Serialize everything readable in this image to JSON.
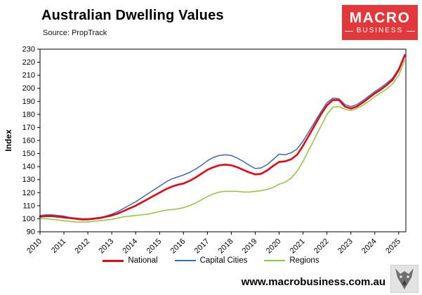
{
  "header": {
    "title": "Australian Dwelling Values",
    "source": "Source: PropTrack",
    "logo": {
      "line1": "MACRO",
      "line2": "BUSINESS",
      "bg_color": "#e2373b"
    }
  },
  "chart_data": {
    "type": "line",
    "title": "Australian Dwelling Values",
    "subtitle": "Source: PropTrack",
    "xlabel": "",
    "ylabel": "Index",
    "ylim": [
      90,
      230
    ],
    "ytick_step": 10,
    "xlim": [
      2010,
      2025.3
    ],
    "xticks": [
      2010,
      2011,
      2012,
      2013,
      2014,
      2015,
      2016,
      2017,
      2018,
      2019,
      2020,
      2021,
      2022,
      2023,
      2024,
      2025
    ],
    "grid": false,
    "legend_position": "bottom",
    "x": [
      2010.0,
      2010.25,
      2010.5,
      2010.75,
      2011.0,
      2011.25,
      2011.5,
      2011.75,
      2012.0,
      2012.25,
      2012.5,
      2012.75,
      2013.0,
      2013.25,
      2013.5,
      2013.75,
      2014.0,
      2014.25,
      2014.5,
      2014.75,
      2015.0,
      2015.25,
      2015.5,
      2015.75,
      2016.0,
      2016.25,
      2016.5,
      2016.75,
      2017.0,
      2017.25,
      2017.5,
      2017.75,
      2018.0,
      2018.25,
      2018.5,
      2018.75,
      2019.0,
      2019.25,
      2019.5,
      2019.75,
      2020.0,
      2020.25,
      2020.5,
      2020.75,
      2021.0,
      2021.25,
      2021.5,
      2021.75,
      2022.0,
      2022.25,
      2022.5,
      2022.75,
      2023.0,
      2023.25,
      2023.5,
      2023.75,
      2024.0,
      2024.25,
      2024.5,
      2024.75,
      2025.0,
      2025.25
    ],
    "series": [
      {
        "name": "National",
        "color": "#e30613",
        "width": 2.6,
        "values": [
          101.5,
          102,
          102,
          101.5,
          101,
          100.5,
          100,
          99.5,
          99.5,
          100,
          100.5,
          101.5,
          102.5,
          104,
          106,
          108,
          110,
          112.5,
          115,
          117.5,
          120,
          122.5,
          124.5,
          126,
          127,
          129,
          131.5,
          134.5,
          137.5,
          139.5,
          141,
          141.5,
          141,
          139.5,
          137.5,
          135.5,
          134,
          134.5,
          137,
          140.5,
          143.5,
          144,
          145.5,
          149,
          156,
          164,
          172,
          180,
          187,
          191,
          191,
          186,
          184.5,
          186,
          189,
          192.5,
          196,
          199,
          202.5,
          206.5,
          214,
          225
        ]
      },
      {
        "name": "Capital Cities",
        "color": "#3a6bb0",
        "width": 1.5,
        "values": [
          102.5,
          103,
          103,
          102.5,
          102,
          101,
          100.5,
          100,
          100,
          100.5,
          101,
          102,
          103.5,
          105.5,
          108,
          110.5,
          113,
          116,
          119,
          122,
          125,
          128,
          130.5,
          132,
          133.5,
          135.5,
          138,
          141,
          144.5,
          147,
          148.5,
          149,
          148.5,
          146.5,
          144,
          141,
          138.5,
          139,
          141.5,
          145.5,
          149.5,
          149,
          150.5,
          153.5,
          159.5,
          167,
          174.5,
          182,
          189,
          192.5,
          192,
          187.5,
          186,
          187.5,
          190.5,
          194,
          197.5,
          200.5,
          204,
          208,
          215,
          226
        ]
      },
      {
        "name": "Regions",
        "color": "#8cc63e",
        "width": 1.5,
        "values": [
          100,
          100,
          99.5,
          99,
          98.5,
          98,
          97.5,
          97.5,
          97.5,
          98,
          98.5,
          99,
          99.5,
          100.5,
          101.5,
          102,
          102.5,
          103,
          103.5,
          104.5,
          105.5,
          106.5,
          107,
          107.5,
          108.5,
          110,
          112,
          114.5,
          117,
          119,
          120.5,
          121,
          121,
          121,
          120.5,
          120.5,
          121,
          121.5,
          122.5,
          124,
          126.5,
          128,
          131,
          136.5,
          144,
          153,
          162,
          171,
          180,
          185.5,
          186,
          184,
          183,
          184.5,
          187,
          190,
          193.5,
          196.5,
          199.5,
          203.5,
          210,
          221.5
        ]
      }
    ]
  },
  "footer": {
    "website": "www.macrobusiness.com.au"
  }
}
